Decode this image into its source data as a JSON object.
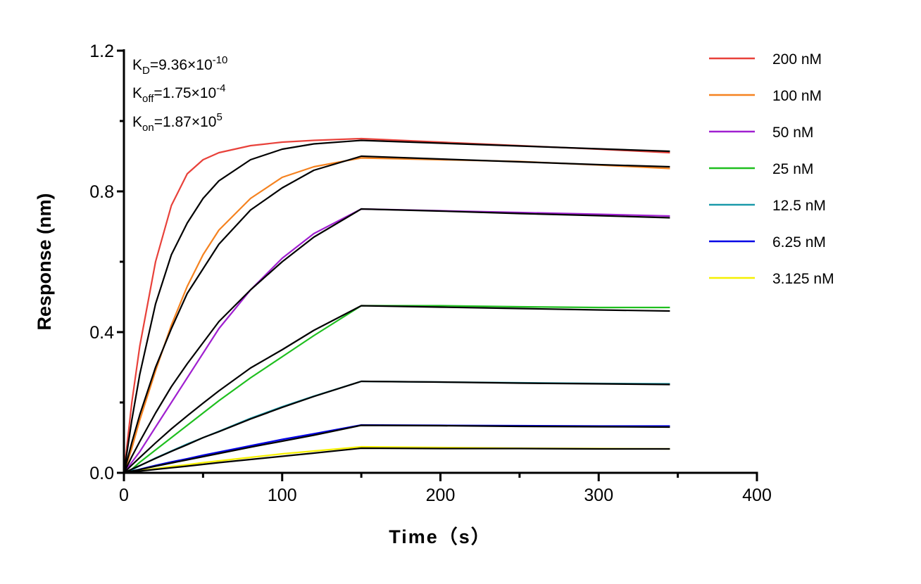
{
  "chart_data": {
    "type": "line",
    "title": "",
    "xlabel": "Time（s）",
    "ylabel": "Response (nm)",
    "xlim": [
      0,
      400
    ],
    "ylim": [
      0,
      1.2
    ],
    "xticks": [
      0,
      100,
      200,
      300,
      400
    ],
    "yticks": [
      0.0,
      0.4,
      0.8,
      1.2
    ],
    "ytick_labels": [
      "0.0",
      "0.4",
      "0.8",
      "1.2"
    ],
    "xtick_labels": [
      "0",
      "100",
      "200",
      "300",
      "400"
    ],
    "grid": false,
    "legend_placement": "top-right",
    "annotations": {
      "kd": {
        "base": "K",
        "sub": "D",
        "text": "=9.36×10",
        "exp": "-10"
      },
      "koff": {
        "base": "K",
        "sub": "off",
        "text": "=1.75×10",
        "exp": "-4"
      },
      "kon": {
        "base": "K",
        "sub": "on",
        "text": "=1.87×10",
        "exp": "5"
      }
    },
    "fit_color": "#000000",
    "x": [
      0,
      5,
      10,
      20,
      30,
      40,
      50,
      60,
      80,
      100,
      120,
      150,
      200,
      250,
      300,
      345
    ],
    "series": [
      {
        "name": "200 nM",
        "color": "#e8413a",
        "raw": [
          0,
          0.2,
          0.36,
          0.6,
          0.76,
          0.85,
          0.89,
          0.91,
          0.93,
          0.94,
          0.945,
          0.95,
          0.94,
          0.93,
          0.92,
          0.91
        ],
        "fit": [
          0,
          0.15,
          0.28,
          0.48,
          0.62,
          0.71,
          0.78,
          0.83,
          0.89,
          0.92,
          0.935,
          0.945,
          0.937,
          0.929,
          0.921,
          0.914
        ]
      },
      {
        "name": "100 nM",
        "color": "#f5821f",
        "raw": [
          0,
          0.07,
          0.15,
          0.29,
          0.42,
          0.53,
          0.62,
          0.69,
          0.78,
          0.84,
          0.87,
          0.895,
          0.89,
          0.885,
          0.875,
          0.865
        ],
        "fit": [
          0,
          0.086,
          0.165,
          0.3,
          0.41,
          0.51,
          0.58,
          0.65,
          0.747,
          0.81,
          0.86,
          0.9,
          0.892,
          0.884,
          0.876,
          0.87
        ]
      },
      {
        "name": "50 nM",
        "color": "#a020d0",
        "raw": [
          0,
          0.03,
          0.06,
          0.13,
          0.2,
          0.27,
          0.34,
          0.41,
          0.52,
          0.61,
          0.68,
          0.75,
          0.745,
          0.74,
          0.735,
          0.73
        ],
        "fit": [
          0,
          0.046,
          0.089,
          0.17,
          0.245,
          0.31,
          0.37,
          0.43,
          0.52,
          0.6,
          0.67,
          0.75,
          0.744,
          0.737,
          0.731,
          0.725
        ]
      },
      {
        "name": "25 nM",
        "color": "#1fbf1f",
        "raw": [
          0,
          0.01,
          0.03,
          0.065,
          0.1,
          0.135,
          0.17,
          0.205,
          0.27,
          0.33,
          0.39,
          0.475,
          0.475,
          0.472,
          0.47,
          0.47
        ],
        "fit": [
          0,
          0.022,
          0.0435,
          0.085,
          0.125,
          0.162,
          0.198,
          0.233,
          0.298,
          0.35,
          0.405,
          0.475,
          0.471,
          0.467,
          0.463,
          0.46
        ]
      },
      {
        "name": "12.5 nM",
        "color": "#1a9aaa",
        "raw": [
          0,
          0.008,
          0.02,
          0.042,
          0.062,
          0.082,
          0.1,
          0.118,
          0.155,
          0.188,
          0.218,
          0.26,
          0.258,
          0.256,
          0.254,
          0.253
        ],
        "fit": [
          0,
          0.0104,
          0.0206,
          0.041,
          0.061,
          0.08,
          0.1,
          0.117,
          0.153,
          0.186,
          0.217,
          0.26,
          0.258,
          0.255,
          0.253,
          0.251
        ]
      },
      {
        "name": "6.25 nM",
        "color": "#0000e6",
        "raw": [
          0,
          0.004,
          0.01,
          0.021,
          0.031,
          0.04,
          0.05,
          0.059,
          0.077,
          0.095,
          0.111,
          0.136,
          0.135,
          0.134,
          0.133,
          0.133
        ],
        "fit": [
          0,
          0.0048,
          0.0095,
          0.019,
          0.028,
          0.037,
          0.046,
          0.055,
          0.073,
          0.09,
          0.107,
          0.135,
          0.134,
          0.132,
          0.131,
          0.13
        ]
      },
      {
        "name": "3.125 nM",
        "color": "#f5f000",
        "raw": [
          0,
          0.002,
          0.006,
          0.012,
          0.018,
          0.023,
          0.029,
          0.034,
          0.044,
          0.054,
          0.062,
          0.074,
          0.072,
          0.07,
          0.069,
          0.068
        ],
        "fit": [
          0,
          0.0025,
          0.005,
          0.0097,
          0.0145,
          0.019,
          0.024,
          0.029,
          0.038,
          0.047,
          0.056,
          0.07,
          0.069,
          0.069,
          0.068,
          0.068
        ]
      }
    ]
  }
}
